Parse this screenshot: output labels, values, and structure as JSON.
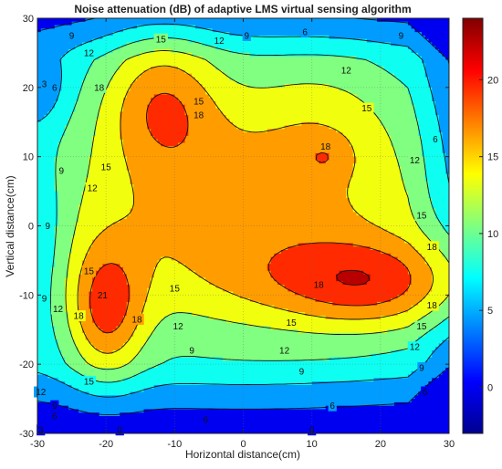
{
  "chart_data": {
    "type": "contour",
    "title": "Noise attenuation (dB) of adaptive LMS virtual sensing algorithm",
    "xlabel": "Horizontal distance(cm)",
    "ylabel": "Vertical distance(cm)",
    "xlim": [
      -30,
      30
    ],
    "ylim": [
      -30,
      30
    ],
    "xticks": [
      -30,
      -20,
      -10,
      0,
      10,
      20,
      30
    ],
    "yticks": [
      -30,
      -20,
      -10,
      0,
      10,
      20,
      30
    ],
    "grid": true,
    "colorbar": {
      "range": [
        -3,
        24
      ],
      "ticks": [
        0,
        5,
        10,
        15,
        20
      ],
      "colormap": "jet"
    },
    "levels": [
      3,
      6,
      9,
      12,
      15,
      18,
      21
    ],
    "peaks": [
      {
        "x": -12,
        "y": 18.5,
        "value": 20
      },
      {
        "x": 12,
        "y": 10,
        "value": 18.5
      },
      {
        "x": -20,
        "y": -12.5,
        "value": 21.5
      },
      {
        "x": 20,
        "y": -8.5,
        "value": 21.5
      }
    ],
    "contour_labels": [
      {
        "x": -25,
        "y": 27.5,
        "text": "9"
      },
      {
        "x": -12,
        "y": 27,
        "text": "15"
      },
      {
        "x": -3.5,
        "y": 26.8,
        "text": "12"
      },
      {
        "x": 0.5,
        "y": 27.5,
        "text": "9"
      },
      {
        "x": 9,
        "y": 28,
        "text": "6"
      },
      {
        "x": 23,
        "y": 27.5,
        "text": "9"
      },
      {
        "x": -22.5,
        "y": 25,
        "text": "12"
      },
      {
        "x": 15,
        "y": 22.5,
        "text": "12"
      },
      {
        "x": -27.5,
        "y": 20,
        "text": "6"
      },
      {
        "x": -29,
        "y": 20.5,
        "text": "3"
      },
      {
        "x": -6.5,
        "y": 18,
        "text": "15"
      },
      {
        "x": -21,
        "y": 20,
        "text": "18"
      },
      {
        "x": -6.5,
        "y": 16,
        "text": "18"
      },
      {
        "x": 18,
        "y": 17,
        "text": "15"
      },
      {
        "x": 28,
        "y": 12.5,
        "text": "6"
      },
      {
        "x": 12,
        "y": 11.5,
        "text": "18"
      },
      {
        "x": 25,
        "y": 9.5,
        "text": "12"
      },
      {
        "x": -26.5,
        "y": 8,
        "text": "9"
      },
      {
        "x": -20,
        "y": 8.5,
        "text": "15"
      },
      {
        "x": -22,
        "y": 5.5,
        "text": "12"
      },
      {
        "x": 26,
        "y": 1.5,
        "text": "15"
      },
      {
        "x": -28.5,
        "y": 0,
        "text": "9"
      },
      {
        "x": 27.5,
        "y": -3,
        "text": "18"
      },
      {
        "x": -22.5,
        "y": -6.5,
        "text": "15"
      },
      {
        "x": 11,
        "y": -8.5,
        "text": "18"
      },
      {
        "x": -10,
        "y": -9,
        "text": "15"
      },
      {
        "x": -29,
        "y": -10.5,
        "text": "9"
      },
      {
        "x": -27,
        "y": -12,
        "text": "12"
      },
      {
        "x": -20.5,
        "y": -10,
        "text": "21"
      },
      {
        "x": 27.5,
        "y": -11.5,
        "text": "18"
      },
      {
        "x": -24,
        "y": -13,
        "text": "18"
      },
      {
        "x": -15.5,
        "y": -13.5,
        "text": "18"
      },
      {
        "x": 7,
        "y": -14,
        "text": "15"
      },
      {
        "x": 26,
        "y": -14.5,
        "text": "15"
      },
      {
        "x": -9.5,
        "y": -14.5,
        "text": "12"
      },
      {
        "x": -7.5,
        "y": -18,
        "text": "9"
      },
      {
        "x": 6,
        "y": -18,
        "text": "12"
      },
      {
        "x": 25,
        "y": -17.5,
        "text": "12"
      },
      {
        "x": 8.5,
        "y": -21,
        "text": "9"
      },
      {
        "x": 26,
        "y": -20.5,
        "text": "9"
      },
      {
        "x": 26.5,
        "y": -24,
        "text": "6"
      },
      {
        "x": -22.5,
        "y": -22.5,
        "text": "15"
      },
      {
        "x": 13,
        "y": -26,
        "text": "6"
      },
      {
        "x": -29.5,
        "y": -24,
        "text": "12"
      },
      {
        "x": -27.5,
        "y": -26,
        "text": "9"
      },
      {
        "x": -27.5,
        "y": -27.5,
        "text": "6"
      },
      {
        "x": -5.5,
        "y": -28,
        "text": "6"
      },
      {
        "x": -29.5,
        "y": -29.5,
        "text": "3"
      },
      {
        "x": -18,
        "y": -29.5,
        "text": "0"
      },
      {
        "x": 10,
        "y": -29.5,
        "text": "0"
      }
    ]
  }
}
